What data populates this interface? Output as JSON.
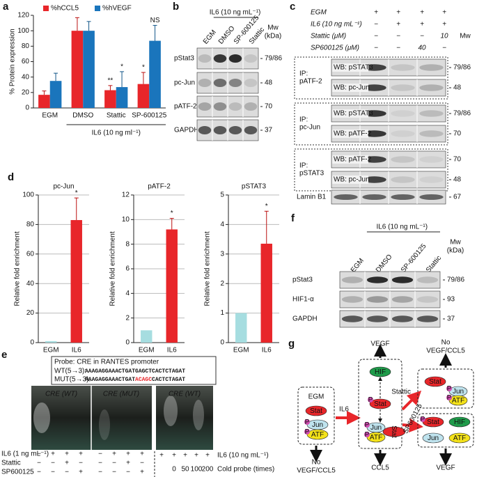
{
  "chart_data": [
    {
      "type": "bar",
      "label": "a",
      "legend": "top",
      "ylabel": "% Protein expression",
      "xlabel": "IL6 (10 ng ml⁻¹)",
      "categories": [
        "EGM",
        "DMSO",
        "Stattic",
        "SP-600125"
      ],
      "series": [
        {
          "name": "%hCCL5",
          "color": "#e8262a",
          "values": [
            17,
            100,
            23,
            31
          ],
          "errors": [
            5,
            17,
            6,
            15
          ],
          "significance": [
            null,
            null,
            "**",
            "*"
          ]
        },
        {
          "name": "%hVEGF",
          "color": "#1a75bc",
          "values": [
            35,
            100,
            27,
            87
          ],
          "errors": [
            10,
            12,
            20,
            20
          ],
          "significance": [
            null,
            null,
            "*",
            "NS"
          ]
        }
      ],
      "ylim": [
        0,
        120
      ],
      "yticks": [
        0,
        20,
        40,
        60,
        80,
        100,
        120
      ],
      "grid": false
    },
    {
      "type": "bar",
      "label": "d",
      "title": "pc-Jun",
      "ylabel": "Relative fold enrichment",
      "categories": [
        "EGM",
        "IL6"
      ],
      "values": [
        1,
        83
      ],
      "errors": [
        null,
        15
      ],
      "significance": [
        null,
        "*"
      ],
      "colors": [
        "#a6dde0",
        "#e8262a"
      ],
      "ylim": [
        0,
        100
      ],
      "yticks": [
        0,
        20,
        40,
        60,
        80,
        100
      ],
      "grid": true
    },
    {
      "type": "bar",
      "title": "pATF-2",
      "ylabel": "Relative fold enrichment",
      "categories": [
        "EGM",
        "IL6"
      ],
      "values": [
        1,
        9.2
      ],
      "errors": [
        null,
        0.9
      ],
      "significance": [
        null,
        "*"
      ],
      "colors": [
        "#a6dde0",
        "#e8262a"
      ],
      "ylim": [
        0,
        12
      ],
      "yticks": [
        0,
        2,
        4,
        6,
        8,
        10,
        12
      ],
      "grid": true
    },
    {
      "type": "bar",
      "title": "pSTAT3",
      "ylabel": "Relative fold enrichment",
      "categories": [
        "EGM",
        "IL6"
      ],
      "values": [
        1,
        3.35
      ],
      "errors": [
        null,
        1.1
      ],
      "significance": [
        null,
        "*"
      ],
      "colors": [
        "#a6dde0",
        "#e8262a"
      ],
      "ylim": [
        0,
        5
      ],
      "yticks": [
        0,
        1,
        2,
        3,
        4,
        5
      ],
      "grid": true
    }
  ],
  "panel_b": {
    "label": "b",
    "condition": "IL6 (10 ng mL⁻¹)",
    "lanes": [
      "EGM",
      "DMSO",
      "SP-600125",
      "Stattic"
    ],
    "mw_header": [
      "Mw",
      "(kDa)"
    ],
    "rows": [
      {
        "name": "pStat3",
        "mw": "79/86"
      },
      {
        "name": "pc-Jun",
        "mw": "48"
      },
      {
        "name": "pATF-2",
        "mw": "70"
      },
      {
        "name": "GAPDH",
        "mw": "37"
      }
    ]
  },
  "panel_c": {
    "label": "c",
    "mw_header": "Mw",
    "treatments": [
      {
        "name": "EGM",
        "marks": [
          "+",
          "+",
          "+",
          "+"
        ]
      },
      {
        "name": "IL6 (10 ng mL⁻¹)",
        "marks": [
          "−",
          "+",
          "+",
          "+"
        ]
      },
      {
        "name": "Stattic (μM)",
        "marks": [
          "−",
          "−",
          "−",
          "10"
        ]
      },
      {
        "name": "SP600125 (μM)",
        "marks": [
          "−",
          "−",
          "40",
          "−"
        ]
      }
    ],
    "boxes": [
      {
        "ip": [
          "IP:",
          "pATF-2"
        ],
        "wb": [
          {
            "name": "WB: pSTAT3",
            "mw": "79/86"
          },
          {
            "name": "WB: pc-Jun",
            "mw": "48"
          }
        ]
      },
      {
        "ip": [
          "IP:",
          "pc-Jun"
        ],
        "wb": [
          {
            "name": "WB: pSTAT3",
            "mw": "79/86"
          },
          {
            "name": "WB: pATF-2",
            "mw": "70"
          }
        ]
      },
      {
        "ip": [
          "IP:",
          "pSTAT3"
        ],
        "wb": [
          {
            "name": "WB: pATF-2",
            "mw": "70"
          },
          {
            "name": "WB: pc-Jun",
            "mw": "48"
          }
        ]
      }
    ],
    "loading": {
      "name": "Lamin B1",
      "mw": "67"
    }
  },
  "panel_e": {
    "label": "e",
    "probe": "Probe: CRE in RANTES promoter",
    "wt_label": "WT(5→3):",
    "wt_seq": "AAAGAGGAAACTGATGAGCTCACTCTAGAT",
    "mut_label": "MUT(5→3):",
    "mut_seq": [
      "AAAGAGGAAACTGAT",
      "ACAGC",
      "CACTCTAGAT"
    ],
    "gels": [
      "CRE (WT)",
      "CRE (MUT)",
      "CRE (WT)"
    ],
    "rows_left": [
      {
        "name": "IL6 (1 ng mL⁻¹)",
        "marks": [
          "−",
          "+",
          "+",
          "+",
          "−",
          "+",
          "+",
          "+"
        ]
      },
      {
        "name": "Stattic",
        "marks": [
          "−",
          "−",
          "+",
          "−",
          "−",
          "−",
          "+",
          "−"
        ]
      },
      {
        "name": "SP600125",
        "marks": [
          "−",
          "−",
          "−",
          "+",
          "−",
          "−",
          "−",
          "+"
        ]
      }
    ],
    "rows_right": [
      {
        "name": "IL6 (10 ng mL⁻¹)",
        "marks": [
          "+",
          "+",
          "+",
          "+",
          "+"
        ]
      },
      {
        "name": "Cold probe (times)",
        "marks": [
          "0",
          "50",
          "100",
          "200"
        ]
      }
    ]
  },
  "panel_f": {
    "label": "f",
    "condition": "IL6 (10 ng mL⁻¹)",
    "lanes": [
      "EGM",
      "DMSO",
      "SP-600125",
      "Stattic"
    ],
    "mw_header": [
      "Mw",
      "(kDa)"
    ],
    "rows": [
      {
        "name": "pStat3",
        "mw": "79/86"
      },
      {
        "name": "HIF1-α",
        "mw": "93"
      },
      {
        "name": "GAPDH",
        "mw": "37"
      }
    ]
  },
  "panel_g": {
    "label": "g",
    "egm": "EGM",
    "il6": "IL6",
    "stattic": "Stattic",
    "sp": "SP600125",
    "vegf": "VEGF",
    "ccl5": "CCL5",
    "no": "No",
    "vegf_ccl5": "VEGF/CCL5",
    "stat": "Stat",
    "jun": "Jun",
    "atf": "ATF",
    "hif": "HIF",
    "p": "P"
  }
}
